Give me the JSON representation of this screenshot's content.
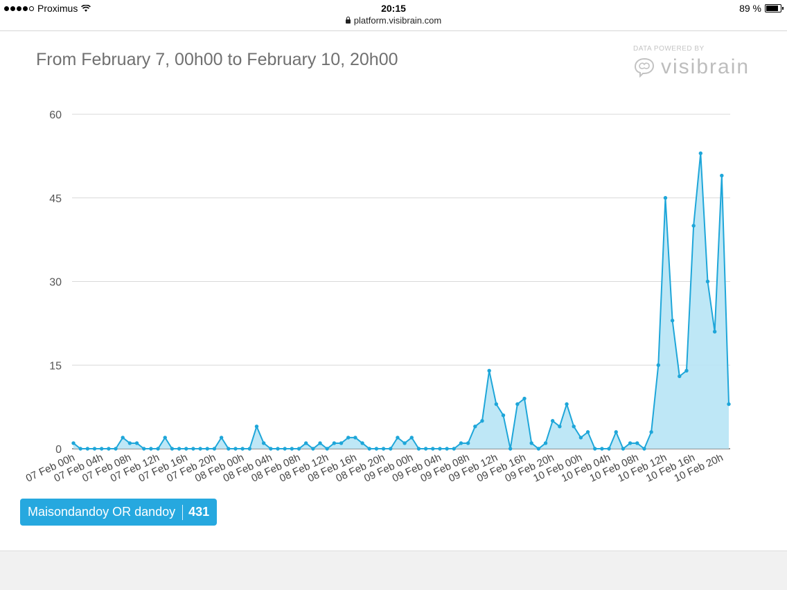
{
  "status_bar": {
    "carrier": "Proximus",
    "time": "20:15",
    "battery": "89 %"
  },
  "url_bar": {
    "url": "platform.visibrain.com"
  },
  "brand": {
    "powered_by": "DATA POWERED BY",
    "name": "visibrain"
  },
  "legend": {
    "label": "Maisondandoy OR dandoy",
    "count": "431"
  },
  "colors": {
    "line": "#1ea6d9",
    "fill": "#b7e4f5",
    "grid": "#d9d9d9",
    "legend": "#26a8df"
  },
  "chart_data": {
    "type": "area",
    "title": "From February 7, 00h00 to February 10, 20h00",
    "xlabel": "",
    "ylabel": "",
    "ylim": [
      0,
      60
    ],
    "yticks": [
      0,
      15,
      30,
      45,
      60
    ],
    "grid": true,
    "legend_position": "bottom-left",
    "x_tick_labels": [
      "07 Feb 00h",
      "07 Feb 04h",
      "07 Feb 08h",
      "07 Feb 12h",
      "07 Feb 16h",
      "07 Feb 20h",
      "08 Feb 00h",
      "08 Feb 04h",
      "08 Feb 08h",
      "08 Feb 12h",
      "08 Feb 16h",
      "08 Feb 20h",
      "09 Feb 00h",
      "09 Feb 04h",
      "09 Feb 08h",
      "09 Feb 12h",
      "09 Feb 16h",
      "09 Feb 20h",
      "10 Feb 00h",
      "10 Feb 04h",
      "10 Feb 08h",
      "10 Feb 12h",
      "10 Feb 16h",
      "10 Feb 20h"
    ],
    "series": [
      {
        "name": "Maisondandoy OR dandoy",
        "values": [
          1,
          0,
          0,
          0,
          0,
          0,
          0,
          2,
          1,
          1,
          0,
          0,
          0,
          2,
          0,
          0,
          0,
          0,
          0,
          0,
          0,
          2,
          0,
          0,
          0,
          0,
          4,
          1,
          0,
          0,
          0,
          0,
          0,
          1,
          0,
          1,
          0,
          1,
          1,
          2,
          2,
          1,
          0,
          0,
          0,
          0,
          2,
          1,
          2,
          0,
          0,
          0,
          0,
          0,
          0,
          1,
          1,
          4,
          5,
          14,
          8,
          6,
          0,
          8,
          9,
          1,
          0,
          1,
          5,
          4,
          8,
          4,
          2,
          3,
          0,
          0,
          0,
          3,
          0,
          1,
          1,
          0,
          3,
          15,
          45,
          23,
          13,
          14,
          40,
          53,
          30,
          21,
          49,
          8
        ]
      }
    ]
  }
}
